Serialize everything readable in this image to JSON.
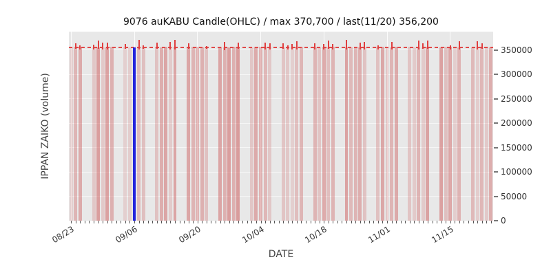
{
  "chart_data": {
    "type": "candlestick",
    "title": "9076 auKABU Candle(OHLC) / max 370,700 / last(11/20) 356,200",
    "xlabel": "DATE",
    "ylabel": "IPPAN ZAIKO (volume)",
    "x_tick_labels": [
      "08/23",
      "09/06",
      "09/20",
      "10/04",
      "10/18",
      "11/01",
      "11/15"
    ],
    "x_tick_day_indices": [
      0,
      14,
      28,
      42,
      56,
      70,
      84
    ],
    "y_tick_values": [
      0,
      50000,
      100000,
      150000,
      200000,
      250000,
      300000,
      350000
    ],
    "ylim": [
      0,
      388000
    ],
    "n_days": 94,
    "start_day_of_week": 2,
    "weekend_days": [
      5,
      6
    ],
    "level_line_value": 356200,
    "max_value": 370700,
    "last_value": 356200,
    "last_date": "11/20",
    "series_base_value": 356200,
    "grid": true,
    "legend": false,
    "y_axis_side": "right",
    "highlight_bar": {
      "day_index": 14,
      "value": 356200,
      "color": "#2323dd"
    },
    "colors": {
      "bar_rgb": "205,92,92",
      "wick": "#e03e3e",
      "level_line": "#e04848",
      "plot_bg": "#e8e8e8",
      "axis_text": "#444444"
    },
    "random_seed": 7
  }
}
